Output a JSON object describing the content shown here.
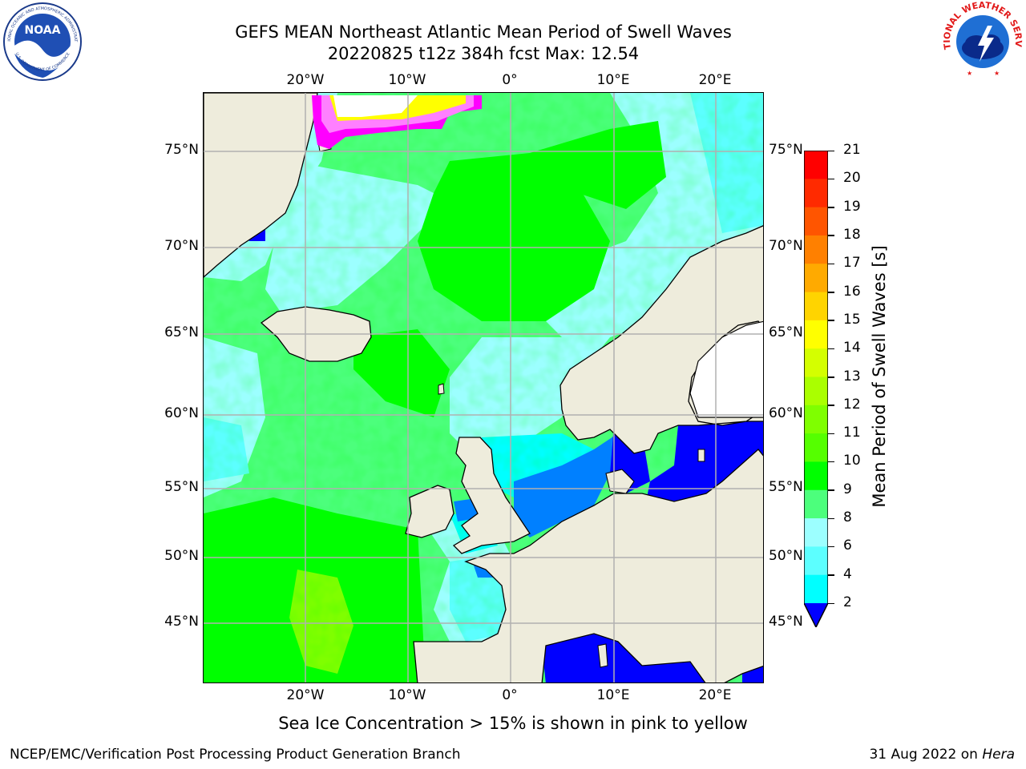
{
  "title": {
    "line1": "GEFS MEAN Northeast Atlantic Mean Period of Swell Waves",
    "line2": "20220825 t12z 384h fcst   Max: 12.54"
  },
  "logos": {
    "left": {
      "icon": "noaa-logo",
      "ring_text": "NATIONAL OCEANIC AND ATMOSPHERIC ADMINISTRATION",
      "bottom_text": "U.S. DEPARTMENT OF COMMERCE",
      "center_text": "NOAA"
    },
    "right": {
      "icon": "nws-logo",
      "ring_text": "NATIONAL WEATHER SERVICE"
    }
  },
  "map": {
    "lon_labels": [
      "20°W",
      "10°W",
      "0°",
      "10°E",
      "20°E"
    ],
    "lat_labels": [
      "75°N",
      "70°N",
      "65°N",
      "60°N",
      "55°N",
      "50°N",
      "45°N"
    ],
    "ocean_colors": {
      "deep_blue": "#0000ff",
      "blue": "#0080ff",
      "cyan": "#00ffff",
      "light_cyan": "#5cffff",
      "pale_cyan": "#9cffff",
      "light_green": "#4cff7c",
      "green": "#00ff00",
      "yellow_green": "#7fff00"
    },
    "land_color": "#eeecdc",
    "ice_colors": [
      "#ff00ff",
      "#ff80ff",
      "#ffff00",
      "#ffffff"
    ]
  },
  "colorbar": {
    "label": "Mean Period of Swell Waves [s]",
    "ticks": [
      "21",
      "20",
      "19",
      "18",
      "17",
      "16",
      "15",
      "14",
      "13",
      "12",
      "11",
      "10",
      "9",
      "8",
      "6",
      "4",
      "2"
    ],
    "colors": [
      "#ff0000",
      "#ff2a00",
      "#ff5500",
      "#ff8000",
      "#ffaa00",
      "#ffd400",
      "#ffff00",
      "#d4ff00",
      "#aaff00",
      "#7fff00",
      "#55ff00",
      "#00ff00",
      "#4cff7c",
      "#9cffff",
      "#5cffff",
      "#00ffff",
      "#0080ff"
    ],
    "under_color": "#0000ff"
  },
  "caption": "Sea Ice Concentration > 15% is shown in pink to yellow",
  "footer": {
    "left": "NCEP/EMC/Verification Post Processing Product Generation Branch",
    "right_date": "31 Aug 2022 on ",
    "right_host": "Hera"
  }
}
